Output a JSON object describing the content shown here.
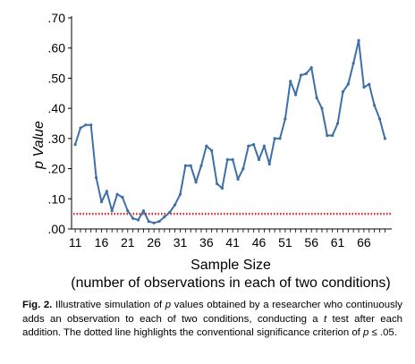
{
  "chart_data": {
    "type": "line",
    "ylabel": "p Value",
    "xlabel": "Sample Size",
    "xlabel_sub": "(number of observations in each of two conditions)",
    "ylim": [
      0,
      0.7
    ],
    "xlim": [
      11,
      70
    ],
    "yticks": [
      ".00",
      ".10",
      ".20",
      ".30",
      ".40",
      ".50",
      ".60",
      ".70"
    ],
    "yticks_values": [
      0,
      0.1,
      0.2,
      0.3,
      0.4,
      0.5,
      0.6,
      0.7
    ],
    "xticks": [
      "11",
      "16",
      "21",
      "26",
      "31",
      "36",
      "41",
      "46",
      "51",
      "56",
      "61",
      "66"
    ],
    "xticks_values": [
      11,
      16,
      21,
      26,
      31,
      36,
      41,
      46,
      51,
      56,
      61,
      66
    ],
    "series_color": "#3d6fa8",
    "threshold": {
      "value": 0.05,
      "color": "#d9262b",
      "style": "dotted"
    },
    "series": [
      {
        "x": [
          11,
          12,
          13,
          14,
          15,
          16,
          17,
          18,
          19,
          20,
          21,
          22,
          23,
          24,
          25,
          26,
          27,
          28,
          29,
          30,
          31,
          32,
          33,
          34,
          35,
          36,
          37,
          38,
          39,
          40,
          41,
          42,
          43,
          44,
          45,
          46,
          47,
          48,
          49,
          50,
          51,
          52,
          53,
          54,
          55,
          56,
          57,
          58,
          59,
          60,
          61,
          62,
          63,
          64,
          65,
          66,
          67,
          68,
          69,
          70
        ],
        "values": [
          0.28,
          0.335,
          0.345,
          0.345,
          0.17,
          0.09,
          0.125,
          0.06,
          0.115,
          0.105,
          0.06,
          0.035,
          0.03,
          0.06,
          0.025,
          0.02,
          0.025,
          0.04,
          0.055,
          0.08,
          0.115,
          0.21,
          0.21,
          0.155,
          0.21,
          0.275,
          0.26,
          0.15,
          0.135,
          0.23,
          0.23,
          0.165,
          0.2,
          0.275,
          0.28,
          0.23,
          0.275,
          0.215,
          0.3,
          0.3,
          0.365,
          0.49,
          0.445,
          0.51,
          0.515,
          0.535,
          0.435,
          0.4,
          0.31,
          0.31,
          0.35,
          0.455,
          0.48,
          0.55,
          0.625,
          0.47,
          0.48,
          0.41,
          0.365,
          0.3
        ]
      }
    ]
  },
  "caption": {
    "fig_label": "Fig. 2.",
    "text_before_p": " Illustrative simulation of ",
    "p1": "p",
    "text_values": " values obtained by a researcher who continuously adds an observation to each of two conditions, conducting a ",
    "t": "t",
    "text_test": " test after each addition. The dotted line highlights the conventional significance criterion of ",
    "p2": "p",
    "text_end": " ≤ .05."
  }
}
